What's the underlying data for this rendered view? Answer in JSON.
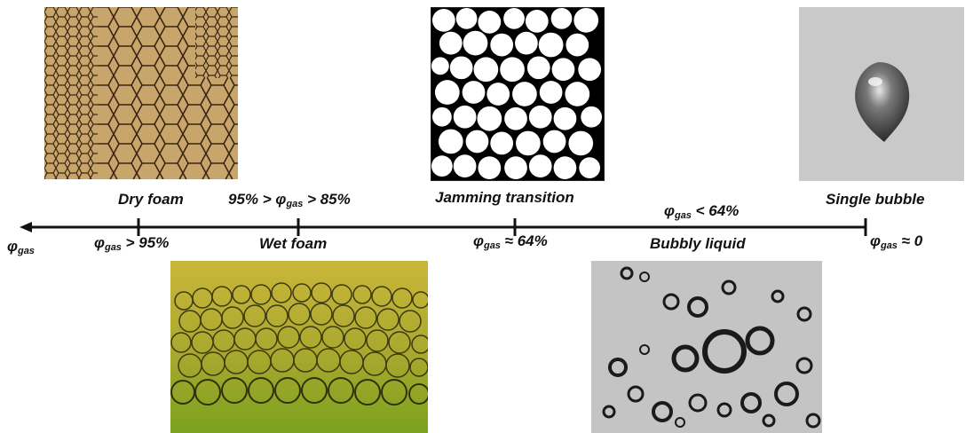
{
  "stages": {
    "dry_foam": {
      "name": "Dry foam",
      "prefix": "φ",
      "sub": "gas",
      "suffix": " > 95%"
    },
    "wet_foam": {
      "name": "Wet foam",
      "range_left": "95% > ",
      "prefix": "φ",
      "sub": "gas",
      "suffix": " > 85%"
    },
    "jamming": {
      "name": "Jamming transition",
      "prefix": "φ",
      "sub": "gas",
      "suffix": " ≈ 64%"
    },
    "bubbly_liquid": {
      "name": "Bubbly liquid",
      "prefix": "φ",
      "sub": "gas",
      "suffix": " < 64%"
    },
    "single_bubble": {
      "name": "Single bubble",
      "prefix": "φ",
      "sub": "gas",
      "suffix": " ≈ 0"
    }
  },
  "axis": {
    "prefix": "φ",
    "sub": "gas"
  },
  "colors": {
    "axis": "#111111",
    "dry_foam_bg": "#c8a56a",
    "wet_foam_top": "#c9b63a",
    "wet_foam_bottom": "#7aa21e",
    "bubbly_bg": "#c4c4c4",
    "single_bubble_bg": "#c9c9c9"
  }
}
